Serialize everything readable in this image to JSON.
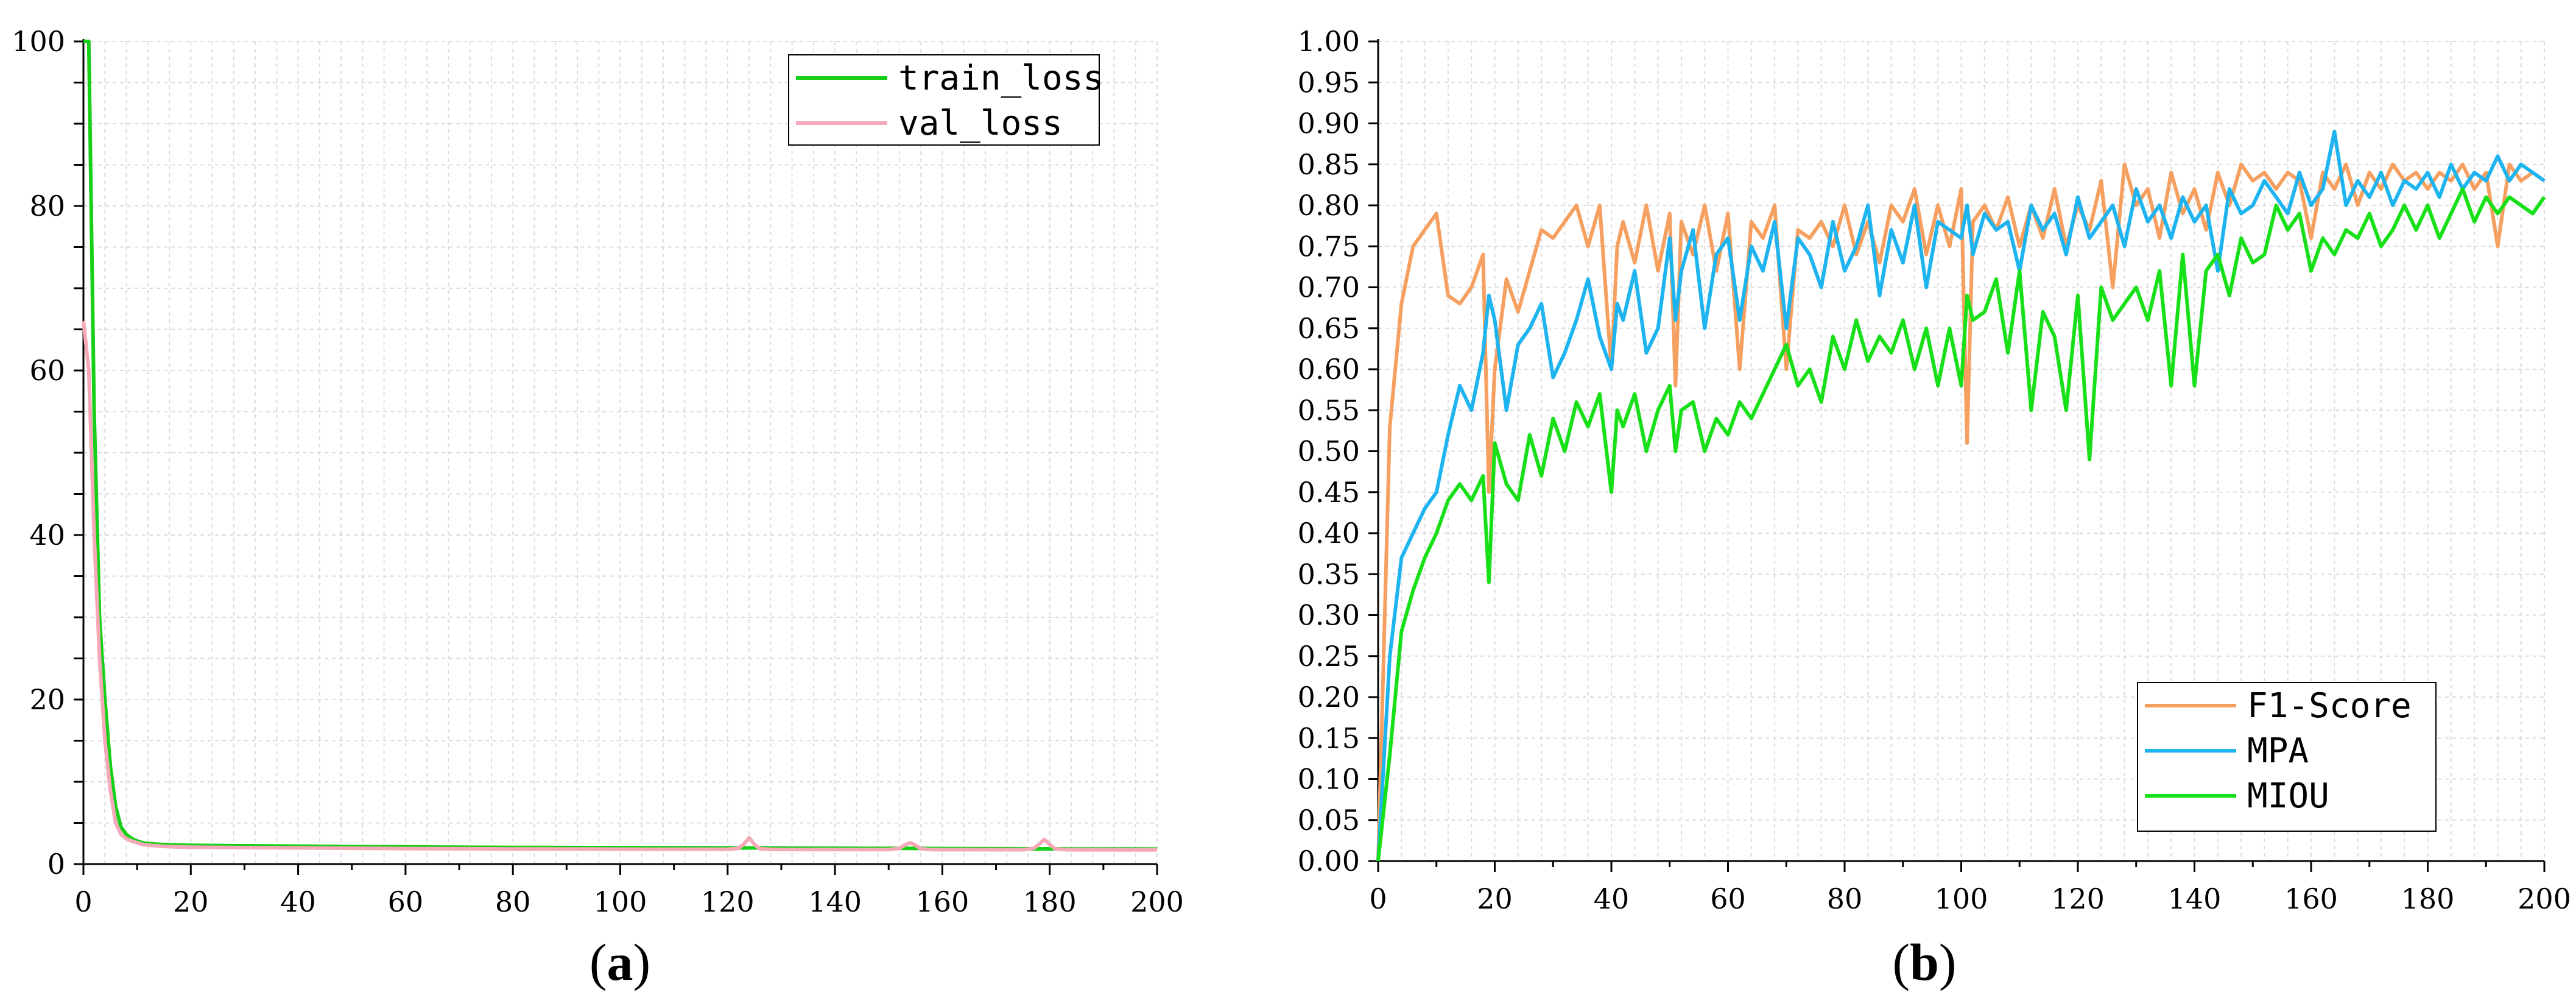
{
  "chart_data": [
    {
      "panel_label": "a",
      "type": "line",
      "xlim": [
        0,
        200
      ],
      "ylim": [
        0,
        100
      ],
      "x_ticks": [
        0,
        20,
        40,
        60,
        80,
        100,
        120,
        140,
        160,
        180,
        200
      ],
      "y_ticks": [
        0,
        20,
        40,
        60,
        80,
        100
      ],
      "grid": true,
      "legend_position": "top-right",
      "x": [
        0,
        1,
        2,
        3,
        4,
        5,
        6,
        7,
        8,
        9,
        10,
        11,
        12,
        13,
        14,
        15,
        16,
        17,
        18,
        19,
        20,
        25,
        30,
        35,
        40,
        45,
        50,
        55,
        60,
        65,
        70,
        75,
        80,
        85,
        90,
        95,
        100,
        105,
        110,
        115,
        120,
        122,
        123,
        124,
        125,
        126,
        128,
        130,
        135,
        140,
        145,
        150,
        152,
        153,
        154,
        155,
        156,
        158,
        160,
        165,
        170,
        175,
        177,
        178,
        179,
        180,
        181,
        183,
        185,
        190,
        195,
        200
      ],
      "series": [
        {
          "name": "train_loss",
          "color": "#18d018",
          "values": [
            100,
            100,
            55,
            30,
            20,
            12,
            7,
            4.5,
            3.6,
            3.1,
            2.8,
            2.6,
            2.5,
            2.45,
            2.4,
            2.38,
            2.35,
            2.33,
            2.3,
            2.3,
            2.28,
            2.25,
            2.22,
            2.2,
            2.18,
            2.15,
            2.12,
            2.1,
            2.08,
            2.07,
            2.05,
            2.04,
            2.02,
            2.02,
            2.01,
            2.0,
            2.0,
            1.99,
            1.98,
            1.97,
            1.96,
            1.96,
            1.96,
            1.96,
            1.96,
            1.96,
            1.95,
            1.94,
            1.93,
            1.92,
            1.91,
            1.9,
            1.9,
            1.9,
            1.9,
            1.9,
            1.9,
            1.89,
            1.88,
            1.87,
            1.86,
            1.85,
            1.85,
            1.85,
            1.85,
            1.85,
            1.85,
            1.84,
            1.84,
            1.83,
            1.83,
            1.82
          ]
        },
        {
          "name": "val_loss",
          "color": "#f5a8b8",
          "values": [
            66,
            60,
            40,
            25,
            15,
            9,
            5,
            3.6,
            3.1,
            2.8,
            2.6,
            2.4,
            2.3,
            2.25,
            2.2,
            2.15,
            2.12,
            2.1,
            2.08,
            2.07,
            2.06,
            2.03,
            2.0,
            1.98,
            1.96,
            1.94,
            1.92,
            1.9,
            1.88,
            1.87,
            1.86,
            1.85,
            1.84,
            1.83,
            1.82,
            1.82,
            1.81,
            1.8,
            1.8,
            1.79,
            1.79,
            1.9,
            2.4,
            3.2,
            2.4,
            1.85,
            1.79,
            1.78,
            1.77,
            1.77,
            1.76,
            1.76,
            1.9,
            2.3,
            2.6,
            2.3,
            1.85,
            1.76,
            1.75,
            1.75,
            1.74,
            1.74,
            1.9,
            2.4,
            3.0,
            2.4,
            1.85,
            1.74,
            1.73,
            1.73,
            1.72,
            1.72
          ]
        }
      ]
    },
    {
      "panel_label": "b",
      "type": "line",
      "xlim": [
        0,
        200
      ],
      "ylim": [
        0,
        1
      ],
      "x_ticks": [
        0,
        20,
        40,
        60,
        80,
        100,
        120,
        140,
        160,
        180,
        200
      ],
      "y_ticks": [
        "0.00",
        "0.05",
        "0.10",
        "0.15",
        "0.20",
        "0.25",
        "0.30",
        "0.35",
        "0.40",
        "0.45",
        "0.50",
        "0.55",
        "0.60",
        "0.65",
        "0.70",
        "0.75",
        "0.80",
        "0.85",
        "0.90",
        "0.95",
        "1.00"
      ],
      "grid": true,
      "legend_position": "bottom-right",
      "x": [
        0,
        2,
        4,
        6,
        8,
        10,
        12,
        14,
        16,
        18,
        19,
        20,
        22,
        24,
        26,
        28,
        30,
        32,
        34,
        36,
        38,
        40,
        41,
        42,
        44,
        46,
        48,
        50,
        51,
        52,
        54,
        56,
        58,
        60,
        62,
        64,
        66,
        68,
        70,
        72,
        74,
        76,
        78,
        80,
        82,
        84,
        86,
        88,
        90,
        92,
        94,
        96,
        98,
        100,
        101,
        102,
        104,
        106,
        108,
        110,
        112,
        114,
        116,
        118,
        120,
        122,
        124,
        126,
        128,
        130,
        132,
        134,
        136,
        138,
        140,
        142,
        144,
        146,
        148,
        150,
        152,
        154,
        156,
        158,
        160,
        162,
        164,
        166,
        168,
        170,
        172,
        174,
        176,
        178,
        180,
        182,
        184,
        186,
        188,
        190,
        192,
        194,
        196,
        198,
        200
      ],
      "series": [
        {
          "name": "F1-Score",
          "color": "#f5a060",
          "values": [
            0.0,
            0.53,
            0.68,
            0.75,
            0.77,
            0.79,
            0.69,
            0.68,
            0.7,
            0.74,
            0.45,
            0.6,
            0.71,
            0.67,
            0.72,
            0.77,
            0.76,
            0.78,
            0.8,
            0.75,
            0.8,
            0.6,
            0.75,
            0.78,
            0.73,
            0.8,
            0.72,
            0.79,
            0.58,
            0.78,
            0.74,
            0.8,
            0.72,
            0.79,
            0.6,
            0.78,
            0.76,
            0.8,
            0.6,
            0.77,
            0.76,
            0.78,
            0.75,
            0.8,
            0.74,
            0.78,
            0.73,
            0.8,
            0.78,
            0.82,
            0.74,
            0.8,
            0.75,
            0.82,
            0.51,
            0.78,
            0.8,
            0.77,
            0.81,
            0.75,
            0.8,
            0.76,
            0.82,
            0.75,
            0.8,
            0.77,
            0.83,
            0.7,
            0.85,
            0.8,
            0.82,
            0.76,
            0.84,
            0.79,
            0.82,
            0.77,
            0.84,
            0.8,
            0.85,
            0.83,
            0.84,
            0.82,
            0.84,
            0.83,
            0.76,
            0.84,
            0.82,
            0.85,
            0.8,
            0.84,
            0.82,
            0.85,
            0.83,
            0.84,
            0.82,
            0.84,
            0.83,
            0.85,
            0.82,
            0.84,
            0.75,
            0.85,
            0.83,
            0.84,
            0.83
          ]
        },
        {
          "name": "MPA",
          "color": "#1eb4f0",
          "values": [
            0.0,
            0.25,
            0.37,
            0.4,
            0.43,
            0.45,
            0.52,
            0.58,
            0.55,
            0.62,
            0.69,
            0.66,
            0.55,
            0.63,
            0.65,
            0.68,
            0.59,
            0.62,
            0.66,
            0.71,
            0.64,
            0.6,
            0.68,
            0.66,
            0.72,
            0.62,
            0.65,
            0.76,
            0.66,
            0.72,
            0.77,
            0.65,
            0.74,
            0.76,
            0.66,
            0.75,
            0.72,
            0.78,
            0.65,
            0.76,
            0.74,
            0.7,
            0.78,
            0.72,
            0.75,
            0.8,
            0.69,
            0.77,
            0.73,
            0.8,
            0.7,
            0.78,
            0.77,
            0.76,
            0.8,
            0.74,
            0.79,
            0.77,
            0.78,
            0.72,
            0.8,
            0.77,
            0.79,
            0.74,
            0.81,
            0.76,
            0.78,
            0.8,
            0.75,
            0.82,
            0.78,
            0.8,
            0.76,
            0.81,
            0.78,
            0.8,
            0.72,
            0.82,
            0.79,
            0.8,
            0.83,
            0.81,
            0.79,
            0.84,
            0.8,
            0.82,
            0.89,
            0.8,
            0.83,
            0.81,
            0.84,
            0.8,
            0.83,
            0.82,
            0.84,
            0.81,
            0.85,
            0.82,
            0.84,
            0.83,
            0.86,
            0.83,
            0.85,
            0.84,
            0.83
          ]
        },
        {
          "name": "MIOU",
          "color": "#18e018",
          "values": [
            0.0,
            0.13,
            0.28,
            0.33,
            0.37,
            0.4,
            0.44,
            0.46,
            0.44,
            0.47,
            0.34,
            0.51,
            0.46,
            0.44,
            0.52,
            0.47,
            0.54,
            0.5,
            0.56,
            0.53,
            0.57,
            0.45,
            0.55,
            0.53,
            0.57,
            0.5,
            0.55,
            0.58,
            0.5,
            0.55,
            0.56,
            0.5,
            0.54,
            0.52,
            0.56,
            0.54,
            0.57,
            0.6,
            0.63,
            0.58,
            0.6,
            0.56,
            0.64,
            0.6,
            0.66,
            0.61,
            0.64,
            0.62,
            0.66,
            0.6,
            0.65,
            0.58,
            0.65,
            0.58,
            0.69,
            0.66,
            0.67,
            0.71,
            0.62,
            0.72,
            0.55,
            0.67,
            0.64,
            0.55,
            0.69,
            0.49,
            0.7,
            0.66,
            0.68,
            0.7,
            0.66,
            0.72,
            0.58,
            0.74,
            0.58,
            0.72,
            0.74,
            0.69,
            0.76,
            0.73,
            0.74,
            0.8,
            0.77,
            0.79,
            0.72,
            0.76,
            0.74,
            0.77,
            0.76,
            0.79,
            0.75,
            0.77,
            0.8,
            0.77,
            0.8,
            0.76,
            0.79,
            0.82,
            0.78,
            0.81,
            0.79,
            0.81,
            0.8,
            0.79,
            0.81
          ]
        }
      ]
    }
  ]
}
